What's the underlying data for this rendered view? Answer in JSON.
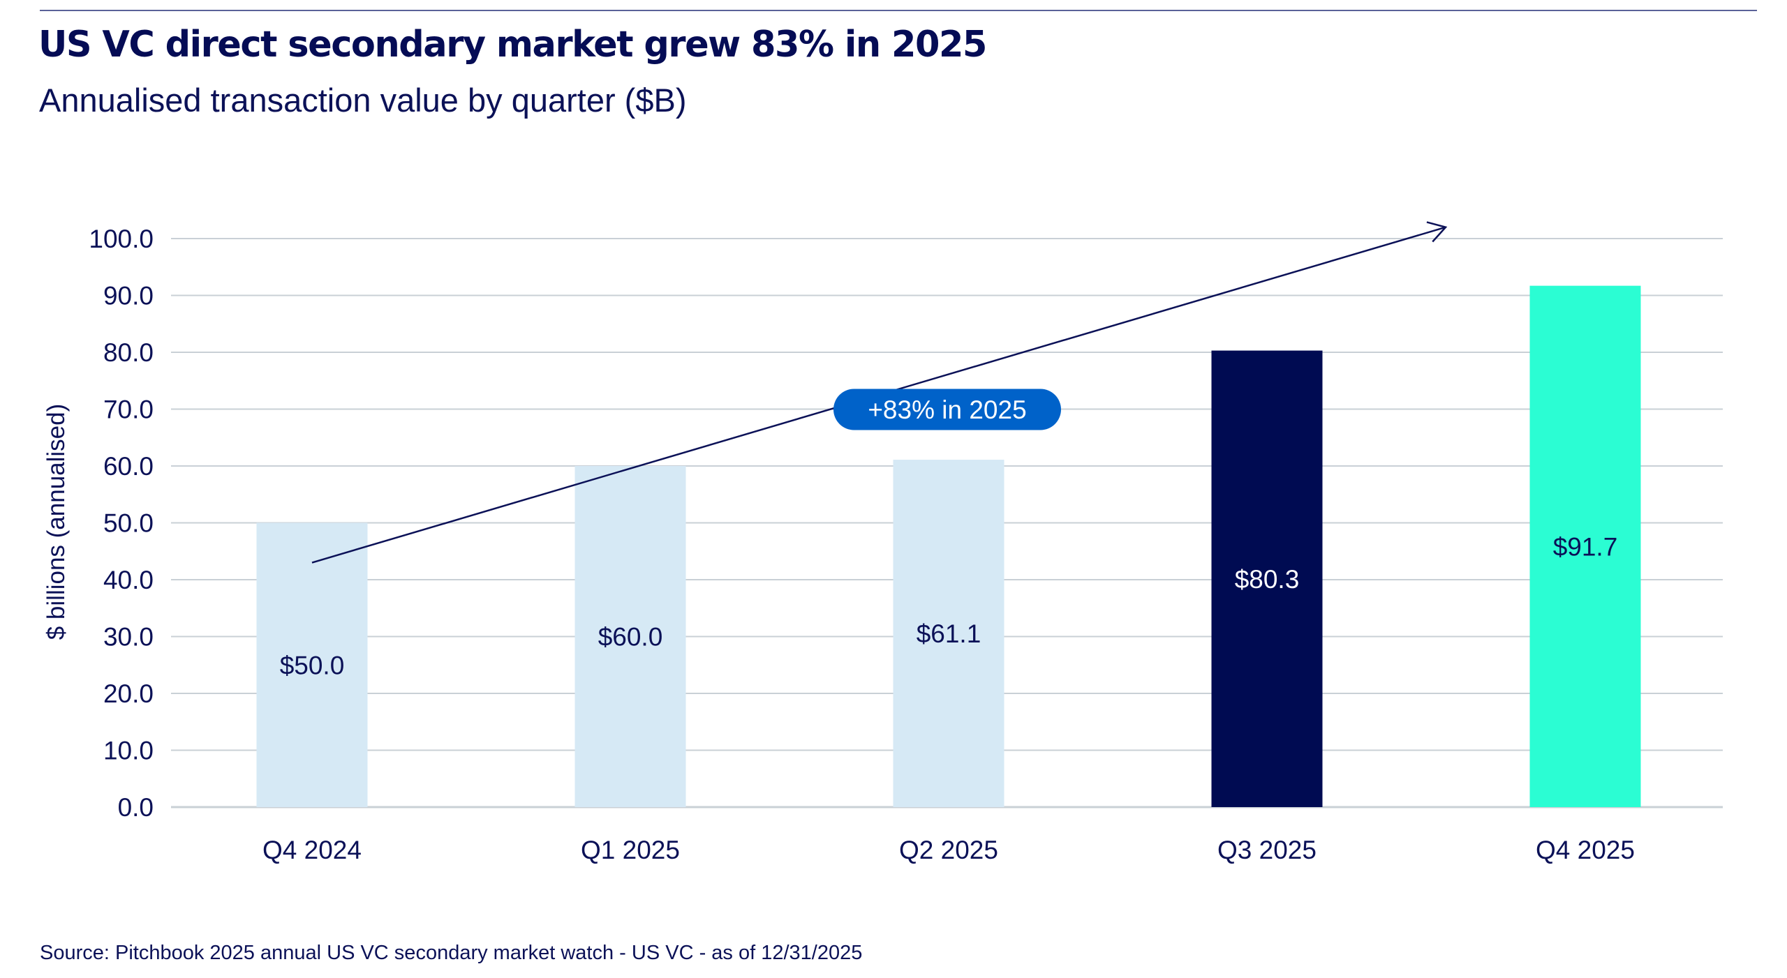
{
  "header": {
    "title": "US VC direct secondary market grew 83% in 2025",
    "subtitle": "Annualised transaction value by quarter ($B)"
  },
  "footer": {
    "source": "Source: Pitchbook 2025 annual US VC secondary market watch - US VC - as of 12/31/2025"
  },
  "colors": {
    "light_bar": "#D6E9F5",
    "navy_bar": "#000B52",
    "teal_bar": "#2BFDD3",
    "text": "#0B1157",
    "grid": "#C9D0D6",
    "pill": "#0062C9",
    "trend": "#0B1157"
  },
  "chart_data": {
    "type": "bar",
    "title": "US VC direct secondary market grew 83% in 2025",
    "subtitle": "Annualised transaction value by quarter ($B)",
    "xlabel": "",
    "ylabel": "$ billions (annualised)",
    "ylim": [
      0,
      100
    ],
    "yticks": [
      "0.0",
      "10.0",
      "20.0",
      "30.0",
      "40.0",
      "50.0",
      "60.0",
      "70.0",
      "80.0",
      "90.0",
      "100.0"
    ],
    "ytick_values": [
      0,
      10,
      20,
      30,
      40,
      50,
      60,
      70,
      80,
      90,
      100
    ],
    "grid": true,
    "categories": [
      "Q4 2024",
      "Q1 2025",
      "Q2 2025",
      "Q3 2025",
      "Q4 2025"
    ],
    "values": [
      50.0,
      60.0,
      61.1,
      80.3,
      91.7
    ],
    "data_labels": [
      "$50.0",
      "$60.0",
      "$61.1",
      "$80.3",
      "$91.7"
    ],
    "bar_colors": [
      "light_bar",
      "light_bar",
      "light_bar",
      "navy_bar",
      "teal_bar"
    ],
    "label_colors": [
      "#0B1157",
      "#0B1157",
      "#0B1157",
      "#FFFFFF",
      "#0B1157"
    ],
    "annotation": {
      "text": "+83% in 2025",
      "type": "trend-arrow",
      "from": {
        "category_index": 0,
        "value": 43
      },
      "to": {
        "category_index": 4,
        "value": 102
      }
    }
  }
}
